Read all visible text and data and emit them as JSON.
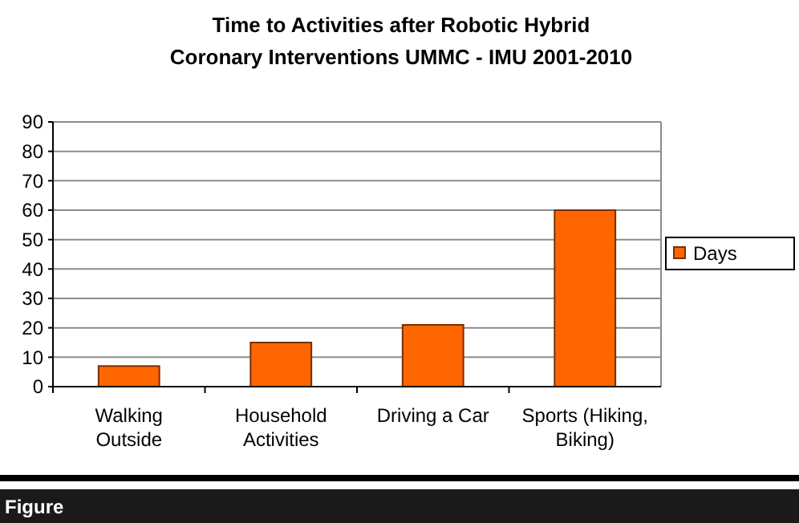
{
  "chart_data": {
    "type": "bar",
    "title": "Time to Activities after Robotic Hybrid Coronary Interventions UMMC - IMU 2001-2010",
    "categories": [
      "Walking Outside",
      "Household Activities",
      "Driving a Car",
      "Sports (Hiking, Biking)"
    ],
    "series": [
      {
        "name": "Days",
        "color": "#ff6600",
        "values": [
          7,
          15,
          21,
          60
        ]
      }
    ],
    "ylim": [
      0,
      90
    ],
    "yticks": [
      0,
      10,
      20,
      30,
      40,
      50,
      60,
      70,
      80,
      90
    ],
    "grid": "y",
    "legend": "right",
    "annotations": [
      "Figure"
    ]
  }
}
